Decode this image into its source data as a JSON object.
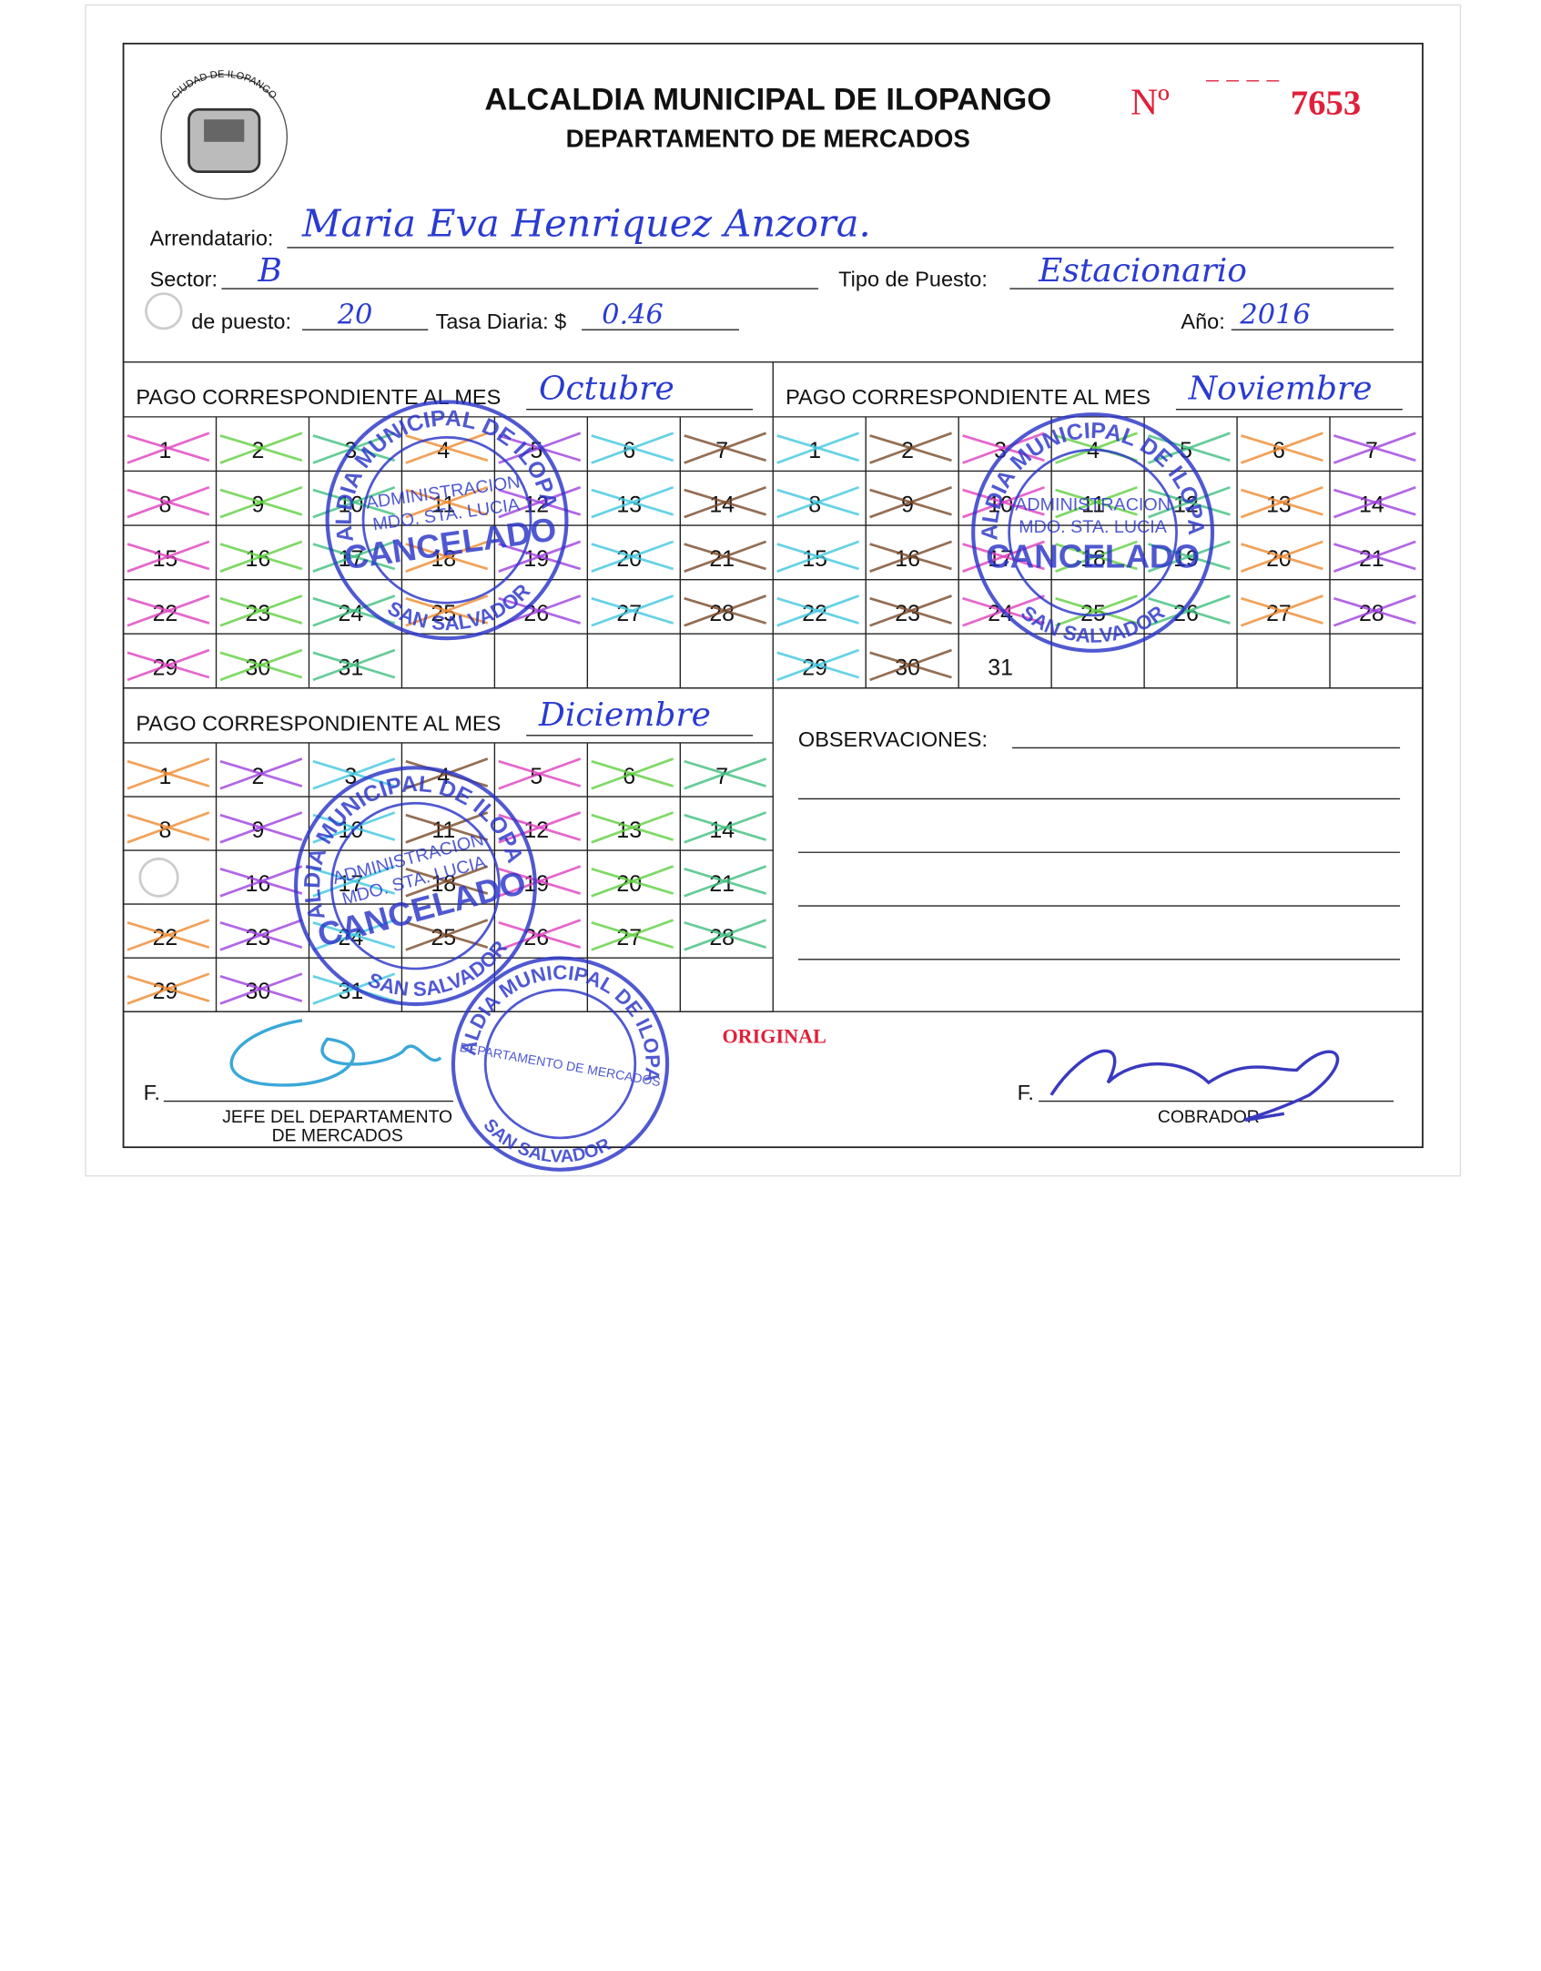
{
  "header": {
    "title": "ALCALDIA MUNICIPAL DE ILOPANGO",
    "subtitle": "DEPARTAMENTO DE MERCADOS",
    "number_label": "Nº",
    "number": 7653
  },
  "logo": {
    "ring": "CIUDAD DE ILOPANGO"
  },
  "fields": {
    "arrendatario": {
      "label": "Arrendatario:",
      "value": "Maria Eva Henriquez Anzora."
    },
    "sector": {
      "label": "Sector:",
      "value": "B"
    },
    "tipo_de_puesto": {
      "label": "Tipo de Puesto:",
      "value": "Estacionario"
    },
    "puesto": {
      "label": "de puesto:",
      "value": 20
    },
    "tasa_diaria": {
      "label": "Tasa Diaria: $",
      "value": 0.46
    },
    "anio": {
      "label": "Año:",
      "value": 2016
    }
  },
  "months": [
    {
      "label": "PAGO CORRESPONDIENTE AL MES",
      "month": "Octubre",
      "days": [
        1,
        2,
        3,
        4,
        5,
        6,
        7,
        8,
        9,
        10,
        11,
        12,
        13,
        14,
        15,
        16,
        17,
        18,
        19,
        20,
        21,
        22,
        23,
        24,
        25,
        26,
        27,
        28,
        29,
        30,
        31
      ]
    },
    {
      "label": "PAGO CORRESPONDIENTE AL MES",
      "month": "Noviembre",
      "days": [
        1,
        2,
        3,
        4,
        5,
        6,
        7,
        8,
        9,
        10,
        11,
        12,
        13,
        14,
        15,
        16,
        17,
        18,
        19,
        20,
        21,
        22,
        23,
        24,
        25,
        26,
        27,
        28,
        29,
        30,
        31
      ]
    },
    {
      "label": "PAGO CORRESPONDIENTE AL MES",
      "month": "Diciembre",
      "days": [
        1,
        2,
        3,
        4,
        5,
        6,
        7,
        8,
        9,
        10,
        11,
        12,
        13,
        14,
        null,
        16,
        17,
        18,
        19,
        20,
        21,
        22,
        23,
        24,
        25,
        26,
        27,
        28,
        29,
        30,
        31
      ]
    }
  ],
  "observaciones": {
    "label": "OBSERVACIONES:"
  },
  "stamp": {
    "middle": [
      "ADMINISTRACION",
      "MDO. STA. LUCIA"
    ],
    "center": "CANCELADO",
    "bottom": "SAN SALVADOR"
  },
  "footer": {
    "copy": "ORIGINAL",
    "signatures": [
      {
        "prefix": "F.",
        "title": [
          "JEFE DEL DEPARTAMENTO",
          "DE MERCADOS"
        ]
      },
      {
        "prefix": "F.",
        "title": [
          "COBRADOR"
        ]
      }
    ]
  }
}
